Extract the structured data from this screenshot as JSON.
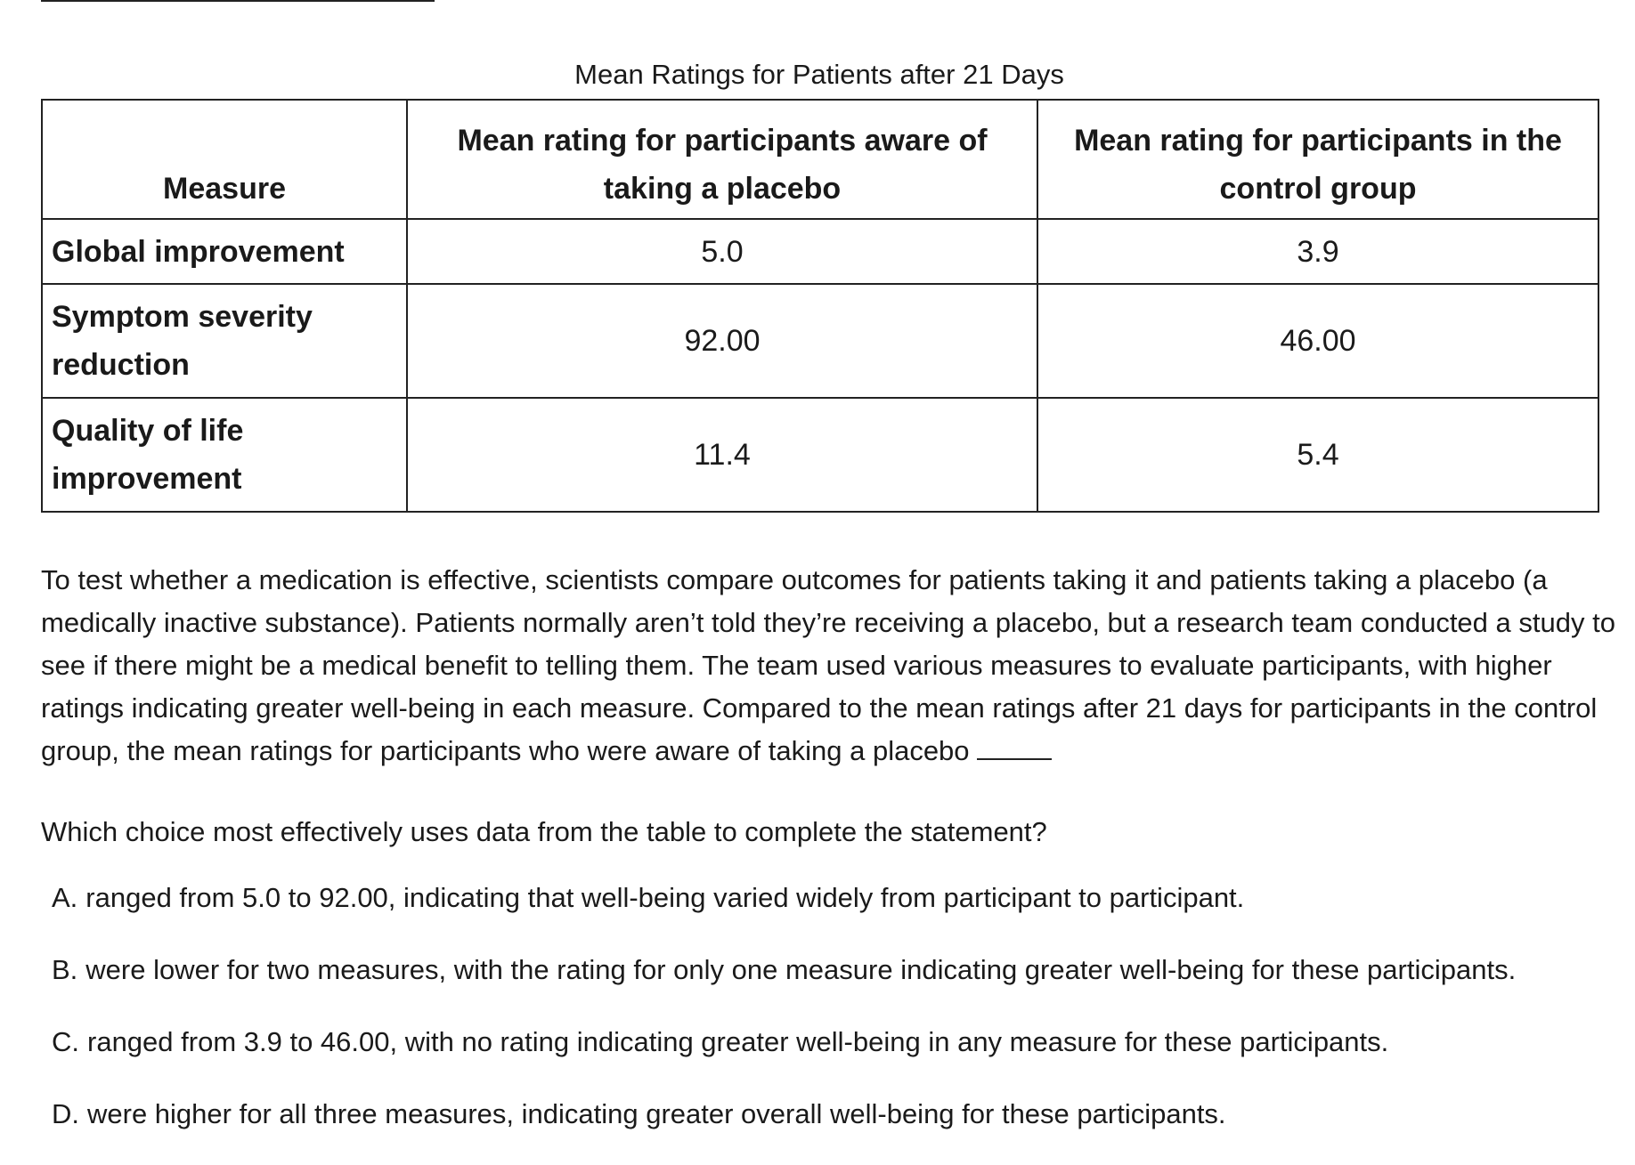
{
  "table": {
    "caption": "Mean Ratings for Patients after 21 Days",
    "headers": [
      "Measure",
      "Mean rating for participants aware of taking a placebo",
      "Mean rating for participants in the control group"
    ],
    "rows": [
      {
        "measure": "Global improvement",
        "aware": "5.0",
        "control": "3.9"
      },
      {
        "measure": "Symptom severity reduction",
        "aware": "92.00",
        "control": "46.00"
      },
      {
        "measure": "Quality of life improvement",
        "aware": "11.4",
        "control": "5.4"
      }
    ]
  },
  "passage": "To test whether a medication is effective, scientists compare outcomes for patients taking it and patients taking a placebo (a medically inactive substance). Patients normally aren’t told they’re receiving a placebo, but a research team conducted a study to see if there might be a medical benefit to telling them. The team used various measures to evaluate participants, with higher ratings indicating greater well-being in each measure. Compared to the mean ratings after 21 days for participants in the control group, the mean ratings for participants who were aware of taking a placebo",
  "question": "Which choice most effectively uses data from the table to complete the statement?",
  "choices": [
    {
      "letter": "A.",
      "text": "ranged from 5.0 to 92.00, indicating that well-being varied widely from participant to participant."
    },
    {
      "letter": "B.",
      "text": "were lower for two measures, with the rating for only one measure indicating greater well-being for these participants."
    },
    {
      "letter": "C.",
      "text": "ranged from 3.9 to 46.00, with no rating indicating greater well-being in any measure for these participants."
    },
    {
      "letter": "D.",
      "text": "were higher for all three measures, indicating greater overall well-being for these participants."
    }
  ]
}
